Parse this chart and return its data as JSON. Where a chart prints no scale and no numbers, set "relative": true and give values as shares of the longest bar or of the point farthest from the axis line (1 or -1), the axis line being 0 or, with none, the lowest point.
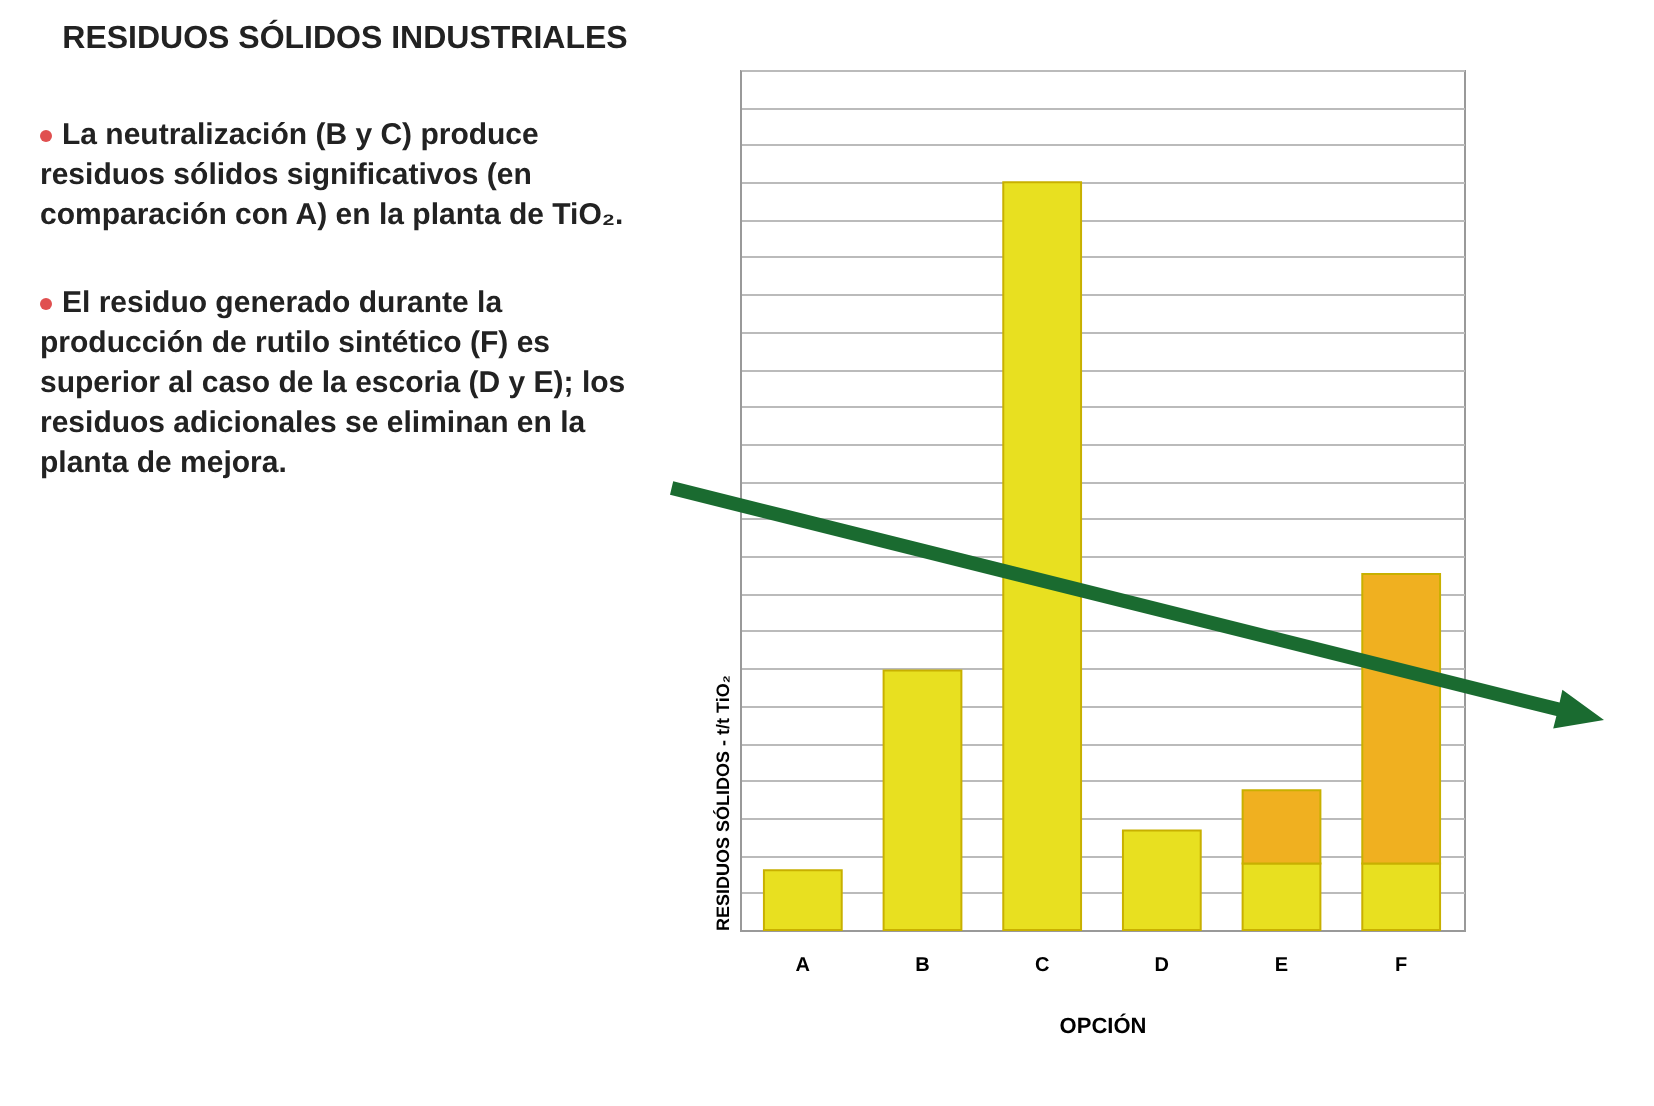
{
  "chart_data": {
    "type": "bar",
    "title": "RESIDUOS SÓLIDOS INDUSTRIALES",
    "annotations": [
      "La neutralización (B y C) produce residuos sólidos significativos (en comparación con A) en la planta de TiO₂.",
      "El residuo generado durante la producción de rutilo sintético (F) es superior al caso de la escoria (D y E); los residuos adicionales se eliminan en la planta de mejora."
    ],
    "xlabel": "OPCIÓN",
    "ylabel": "RESIDUOS SÓLIDOS - t/t TiO₂",
    "categories": [
      "A",
      "B",
      "C",
      "D",
      "E",
      "F"
    ],
    "relative": true,
    "stacked": true,
    "grid": "y",
    "series": [
      {
        "color": "#e8e020",
        "values": [
          0.08,
          0.347,
          1,
          0.133,
          0.089,
          0.089
        ]
      },
      {
        "color": "#f0b020",
        "values": [
          null,
          null,
          null,
          null,
          0.098,
          0.387
        ]
      }
    ]
  }
}
